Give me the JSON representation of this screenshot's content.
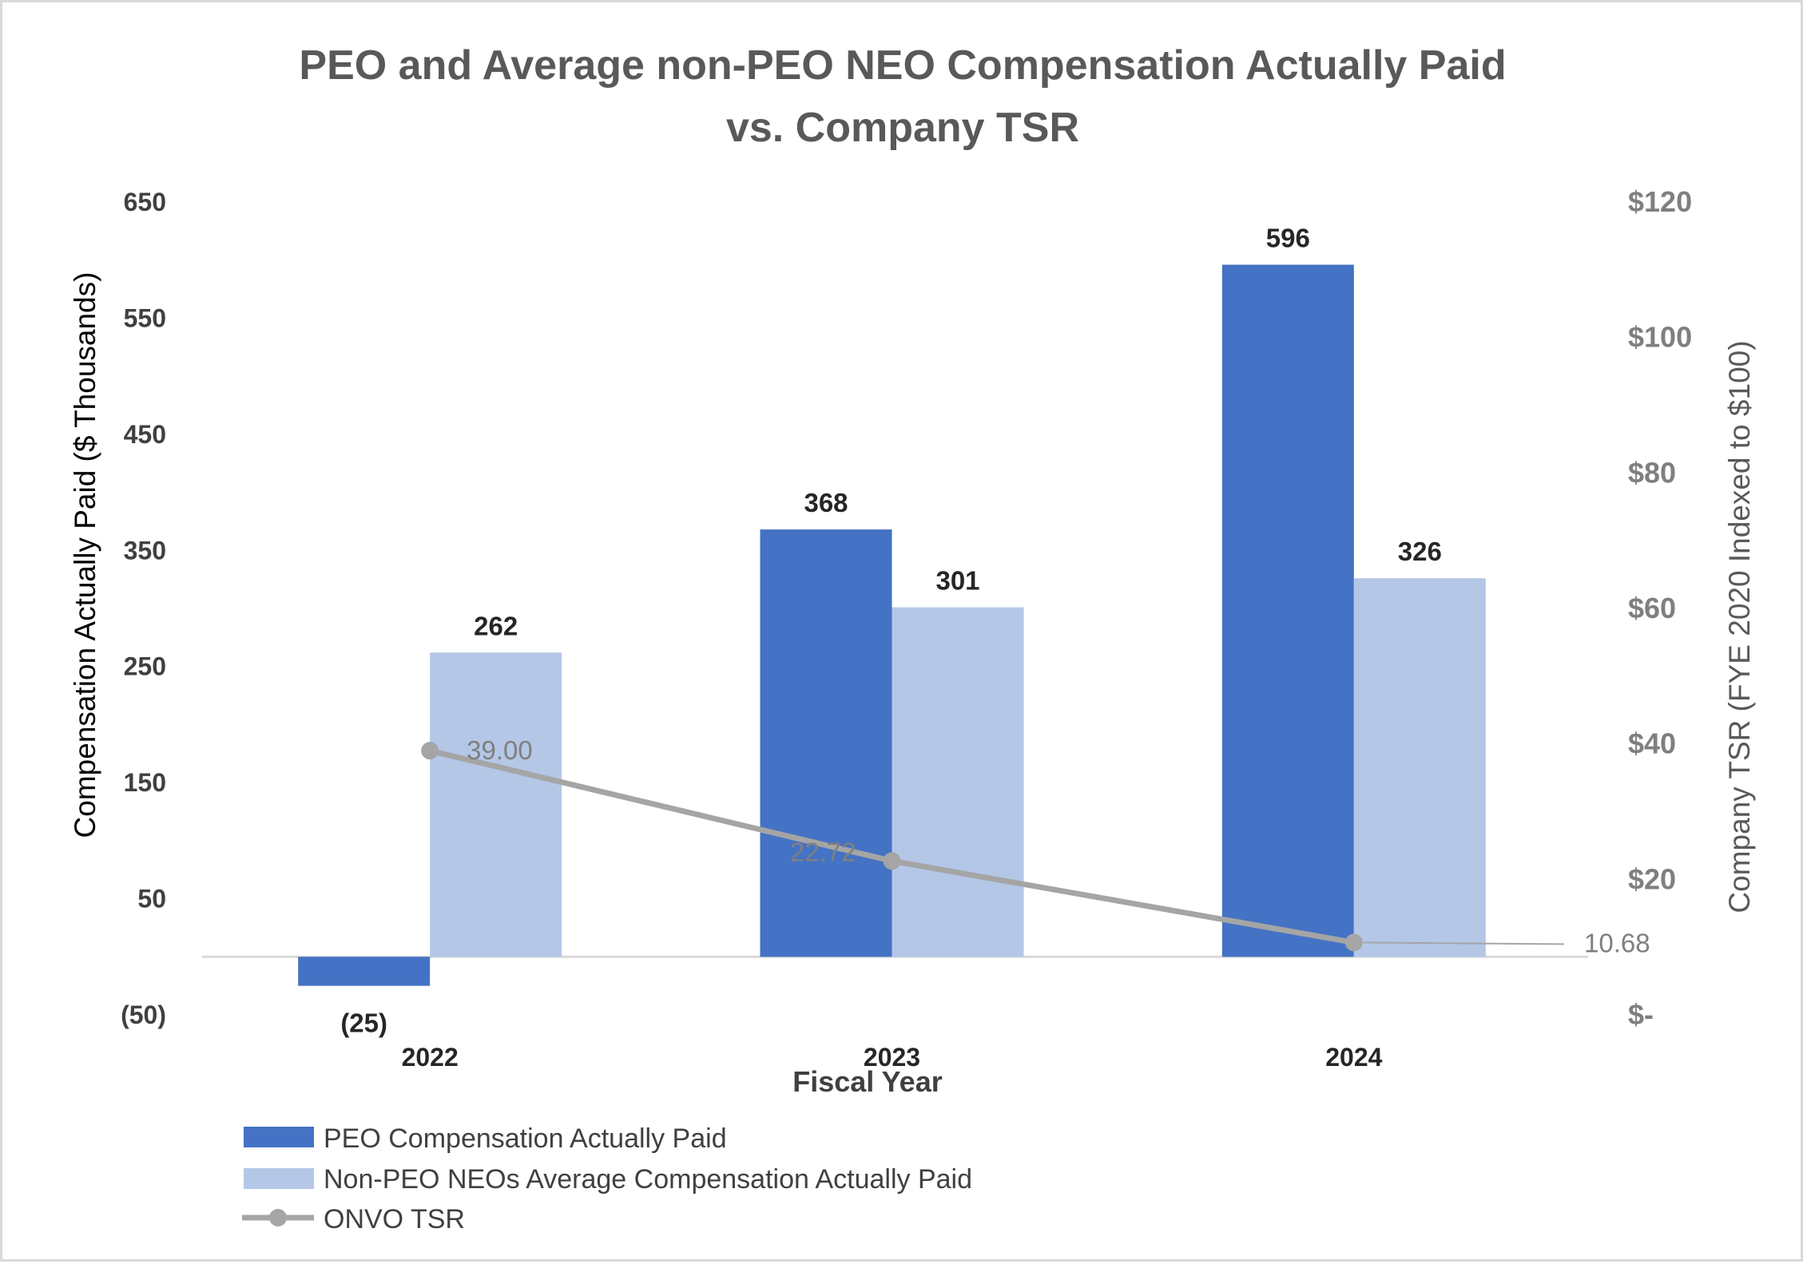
{
  "chart_data": {
    "type": "bar",
    "title_lines": [
      "PEO and Average non-PEO NEO Compensation Actually Paid",
      "vs. Company TSR"
    ],
    "xlabel": "Fiscal Year",
    "ylabel": "Compensation Actually Paid ($ Thousands)",
    "y2label": "Company TSR (FYE 2020 Indexed to $100)",
    "categories": [
      "2022",
      "2023",
      "2024"
    ],
    "ylim": [
      -50,
      650
    ],
    "y2lim": [
      0,
      120
    ],
    "left_ticks": [
      {
        "value": 650,
        "label": "650"
      },
      {
        "value": 550,
        "label": "550"
      },
      {
        "value": 450,
        "label": "450"
      },
      {
        "value": 350,
        "label": "350"
      },
      {
        "value": 250,
        "label": "250"
      },
      {
        "value": 150,
        "label": "150"
      },
      {
        "value": 50,
        "label": "50"
      },
      {
        "value": -50,
        "label": "(50)"
      }
    ],
    "right_ticks": [
      {
        "value": 120,
        "label": "$120"
      },
      {
        "value": 100,
        "label": "$100"
      },
      {
        "value": 80,
        "label": "$80"
      },
      {
        "value": 60,
        "label": "$60"
      },
      {
        "value": 40,
        "label": "$40"
      },
      {
        "value": 20,
        "label": "$20"
      },
      {
        "value": 0,
        "label": "$-"
      }
    ],
    "series": [
      {
        "name": "PEO Compensation Actually Paid",
        "kind": "bar",
        "axis": "left",
        "color": "#4472c4",
        "values": [
          -25,
          368,
          596
        ],
        "labels": [
          "(25)",
          "368",
          "596"
        ]
      },
      {
        "name": "Non-PEO NEOs Average Compensation Actually Paid",
        "kind": "bar",
        "axis": "left",
        "color": "#b4c7e7",
        "values": [
          262,
          301,
          326
        ],
        "labels": [
          "262",
          "301",
          "326"
        ]
      },
      {
        "name": "ONVO TSR",
        "kind": "line",
        "axis": "right",
        "color": "#a5a5a5",
        "values": [
          39.0,
          22.72,
          10.68
        ],
        "labels": [
          "39.00",
          "22.72",
          "10.68"
        ]
      }
    ]
  }
}
